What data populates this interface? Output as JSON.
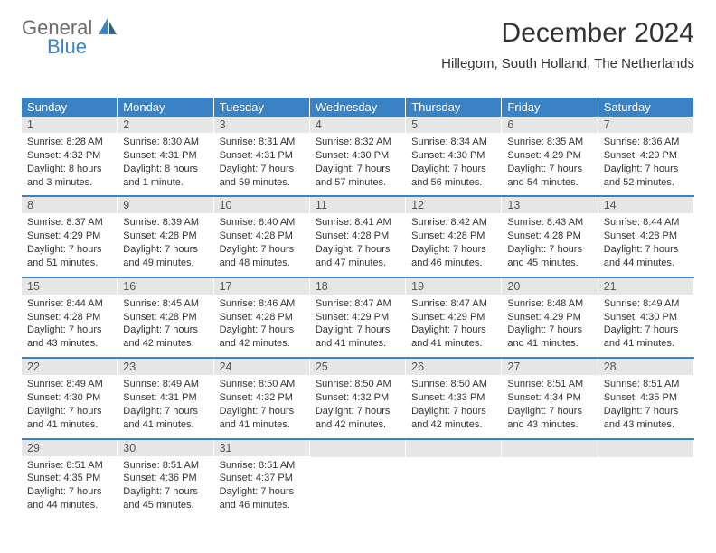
{
  "logo": {
    "line1": "General",
    "line2": "Blue"
  },
  "header": {
    "title": "December 2024",
    "subtitle": "Hillegom, South Holland, The Netherlands"
  },
  "colors": {
    "brand": "#3b82c4",
    "daynum_bg": "#e6e6e6",
    "text": "#333333",
    "logo_gray": "#6b6b6b"
  },
  "day_headers": [
    "Sunday",
    "Monday",
    "Tuesday",
    "Wednesday",
    "Thursday",
    "Friday",
    "Saturday"
  ],
  "weeks": [
    [
      {
        "day": "1",
        "sunrise": "8:28 AM",
        "sunset": "4:32 PM",
        "daylight": "8 hours and 3 minutes."
      },
      {
        "day": "2",
        "sunrise": "8:30 AM",
        "sunset": "4:31 PM",
        "daylight": "8 hours and 1 minute."
      },
      {
        "day": "3",
        "sunrise": "8:31 AM",
        "sunset": "4:31 PM",
        "daylight": "7 hours and 59 minutes."
      },
      {
        "day": "4",
        "sunrise": "8:32 AM",
        "sunset": "4:30 PM",
        "daylight": "7 hours and 57 minutes."
      },
      {
        "day": "5",
        "sunrise": "8:34 AM",
        "sunset": "4:30 PM",
        "daylight": "7 hours and 56 minutes."
      },
      {
        "day": "6",
        "sunrise": "8:35 AM",
        "sunset": "4:29 PM",
        "daylight": "7 hours and 54 minutes."
      },
      {
        "day": "7",
        "sunrise": "8:36 AM",
        "sunset": "4:29 PM",
        "daylight": "7 hours and 52 minutes."
      }
    ],
    [
      {
        "day": "8",
        "sunrise": "8:37 AM",
        "sunset": "4:29 PM",
        "daylight": "7 hours and 51 minutes."
      },
      {
        "day": "9",
        "sunrise": "8:39 AM",
        "sunset": "4:28 PM",
        "daylight": "7 hours and 49 minutes."
      },
      {
        "day": "10",
        "sunrise": "8:40 AM",
        "sunset": "4:28 PM",
        "daylight": "7 hours and 48 minutes."
      },
      {
        "day": "11",
        "sunrise": "8:41 AM",
        "sunset": "4:28 PM",
        "daylight": "7 hours and 47 minutes."
      },
      {
        "day": "12",
        "sunrise": "8:42 AM",
        "sunset": "4:28 PM",
        "daylight": "7 hours and 46 minutes."
      },
      {
        "day": "13",
        "sunrise": "8:43 AM",
        "sunset": "4:28 PM",
        "daylight": "7 hours and 45 minutes."
      },
      {
        "day": "14",
        "sunrise": "8:44 AM",
        "sunset": "4:28 PM",
        "daylight": "7 hours and 44 minutes."
      }
    ],
    [
      {
        "day": "15",
        "sunrise": "8:44 AM",
        "sunset": "4:28 PM",
        "daylight": "7 hours and 43 minutes."
      },
      {
        "day": "16",
        "sunrise": "8:45 AM",
        "sunset": "4:28 PM",
        "daylight": "7 hours and 42 minutes."
      },
      {
        "day": "17",
        "sunrise": "8:46 AM",
        "sunset": "4:28 PM",
        "daylight": "7 hours and 42 minutes."
      },
      {
        "day": "18",
        "sunrise": "8:47 AM",
        "sunset": "4:29 PM",
        "daylight": "7 hours and 41 minutes."
      },
      {
        "day": "19",
        "sunrise": "8:47 AM",
        "sunset": "4:29 PM",
        "daylight": "7 hours and 41 minutes."
      },
      {
        "day": "20",
        "sunrise": "8:48 AM",
        "sunset": "4:29 PM",
        "daylight": "7 hours and 41 minutes."
      },
      {
        "day": "21",
        "sunrise": "8:49 AM",
        "sunset": "4:30 PM",
        "daylight": "7 hours and 41 minutes."
      }
    ],
    [
      {
        "day": "22",
        "sunrise": "8:49 AM",
        "sunset": "4:30 PM",
        "daylight": "7 hours and 41 minutes."
      },
      {
        "day": "23",
        "sunrise": "8:49 AM",
        "sunset": "4:31 PM",
        "daylight": "7 hours and 41 minutes."
      },
      {
        "day": "24",
        "sunrise": "8:50 AM",
        "sunset": "4:32 PM",
        "daylight": "7 hours and 41 minutes."
      },
      {
        "day": "25",
        "sunrise": "8:50 AM",
        "sunset": "4:32 PM",
        "daylight": "7 hours and 42 minutes."
      },
      {
        "day": "26",
        "sunrise": "8:50 AM",
        "sunset": "4:33 PM",
        "daylight": "7 hours and 42 minutes."
      },
      {
        "day": "27",
        "sunrise": "8:51 AM",
        "sunset": "4:34 PM",
        "daylight": "7 hours and 43 minutes."
      },
      {
        "day": "28",
        "sunrise": "8:51 AM",
        "sunset": "4:35 PM",
        "daylight": "7 hours and 43 minutes."
      }
    ],
    [
      {
        "day": "29",
        "sunrise": "8:51 AM",
        "sunset": "4:35 PM",
        "daylight": "7 hours and 44 minutes."
      },
      {
        "day": "30",
        "sunrise": "8:51 AM",
        "sunset": "4:36 PM",
        "daylight": "7 hours and 45 minutes."
      },
      {
        "day": "31",
        "sunrise": "8:51 AM",
        "sunset": "4:37 PM",
        "daylight": "7 hours and 46 minutes."
      },
      null,
      null,
      null,
      null
    ]
  ]
}
